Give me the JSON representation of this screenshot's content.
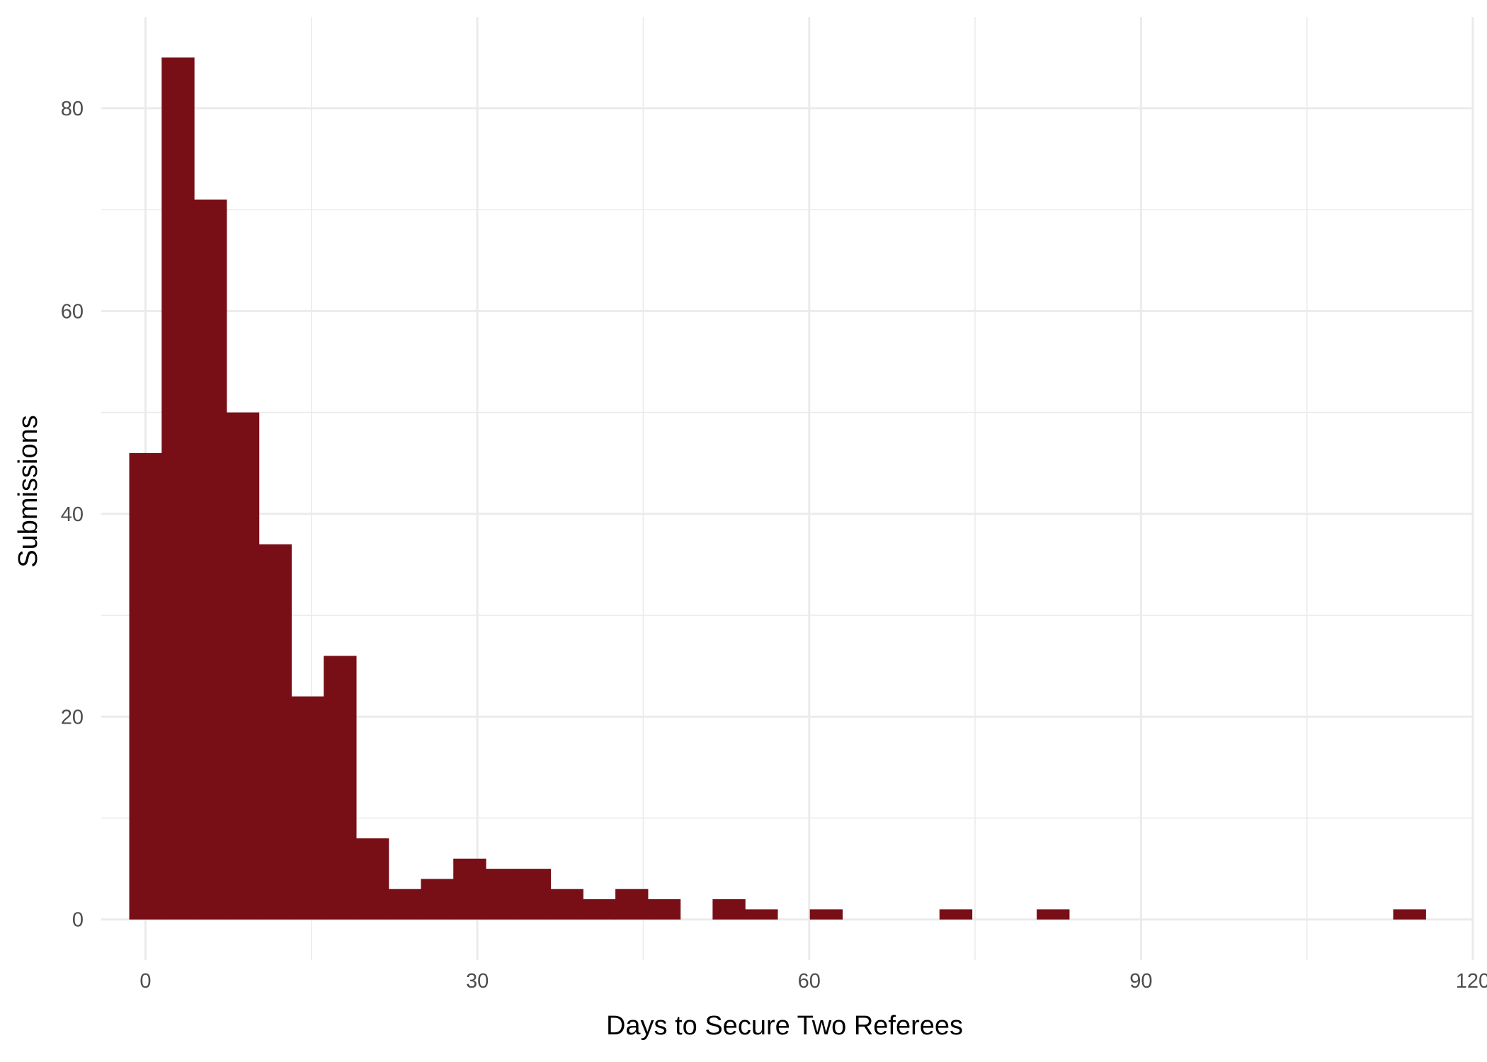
{
  "chart_data": {
    "type": "bar",
    "title": "",
    "xlabel": "Days to Secure Two Referees",
    "ylabel": "Submissions",
    "xlim": [
      -4,
      120
    ],
    "ylim": [
      -4,
      89
    ],
    "x_ticks": [
      0,
      30,
      60,
      90,
      120
    ],
    "y_ticks": [
      0,
      20,
      40,
      60,
      80
    ],
    "grid": true,
    "bin_width": 2.93,
    "bins": [
      {
        "start": -1.47,
        "count": 46
      },
      {
        "start": 1.46,
        "count": 85
      },
      {
        "start": 4.39,
        "count": 71
      },
      {
        "start": 7.32,
        "count": 50
      },
      {
        "start": 10.25,
        "count": 37
      },
      {
        "start": 13.18,
        "count": 22
      },
      {
        "start": 16.11,
        "count": 26
      },
      {
        "start": 19.04,
        "count": 8
      },
      {
        "start": 21.97,
        "count": 3
      },
      {
        "start": 24.9,
        "count": 4
      },
      {
        "start": 27.83,
        "count": 6
      },
      {
        "start": 30.76,
        "count": 5
      },
      {
        "start": 33.69,
        "count": 5
      },
      {
        "start": 36.62,
        "count": 3
      },
      {
        "start": 39.55,
        "count": 2
      },
      {
        "start": 42.48,
        "count": 3
      },
      {
        "start": 45.41,
        "count": 2
      },
      {
        "start": 48.34,
        "count": 0
      },
      {
        "start": 51.27,
        "count": 2
      },
      {
        "start": 54.2,
        "count": 1
      },
      {
        "start": 57.13,
        "count": 0
      },
      {
        "start": 60.06,
        "count": 1
      },
      {
        "start": 71.78,
        "count": 1
      },
      {
        "start": 80.57,
        "count": 1
      },
      {
        "start": 112.8,
        "count": 1
      }
    ],
    "bar_color": "#780f17",
    "grid_color": "#ebebeb"
  }
}
